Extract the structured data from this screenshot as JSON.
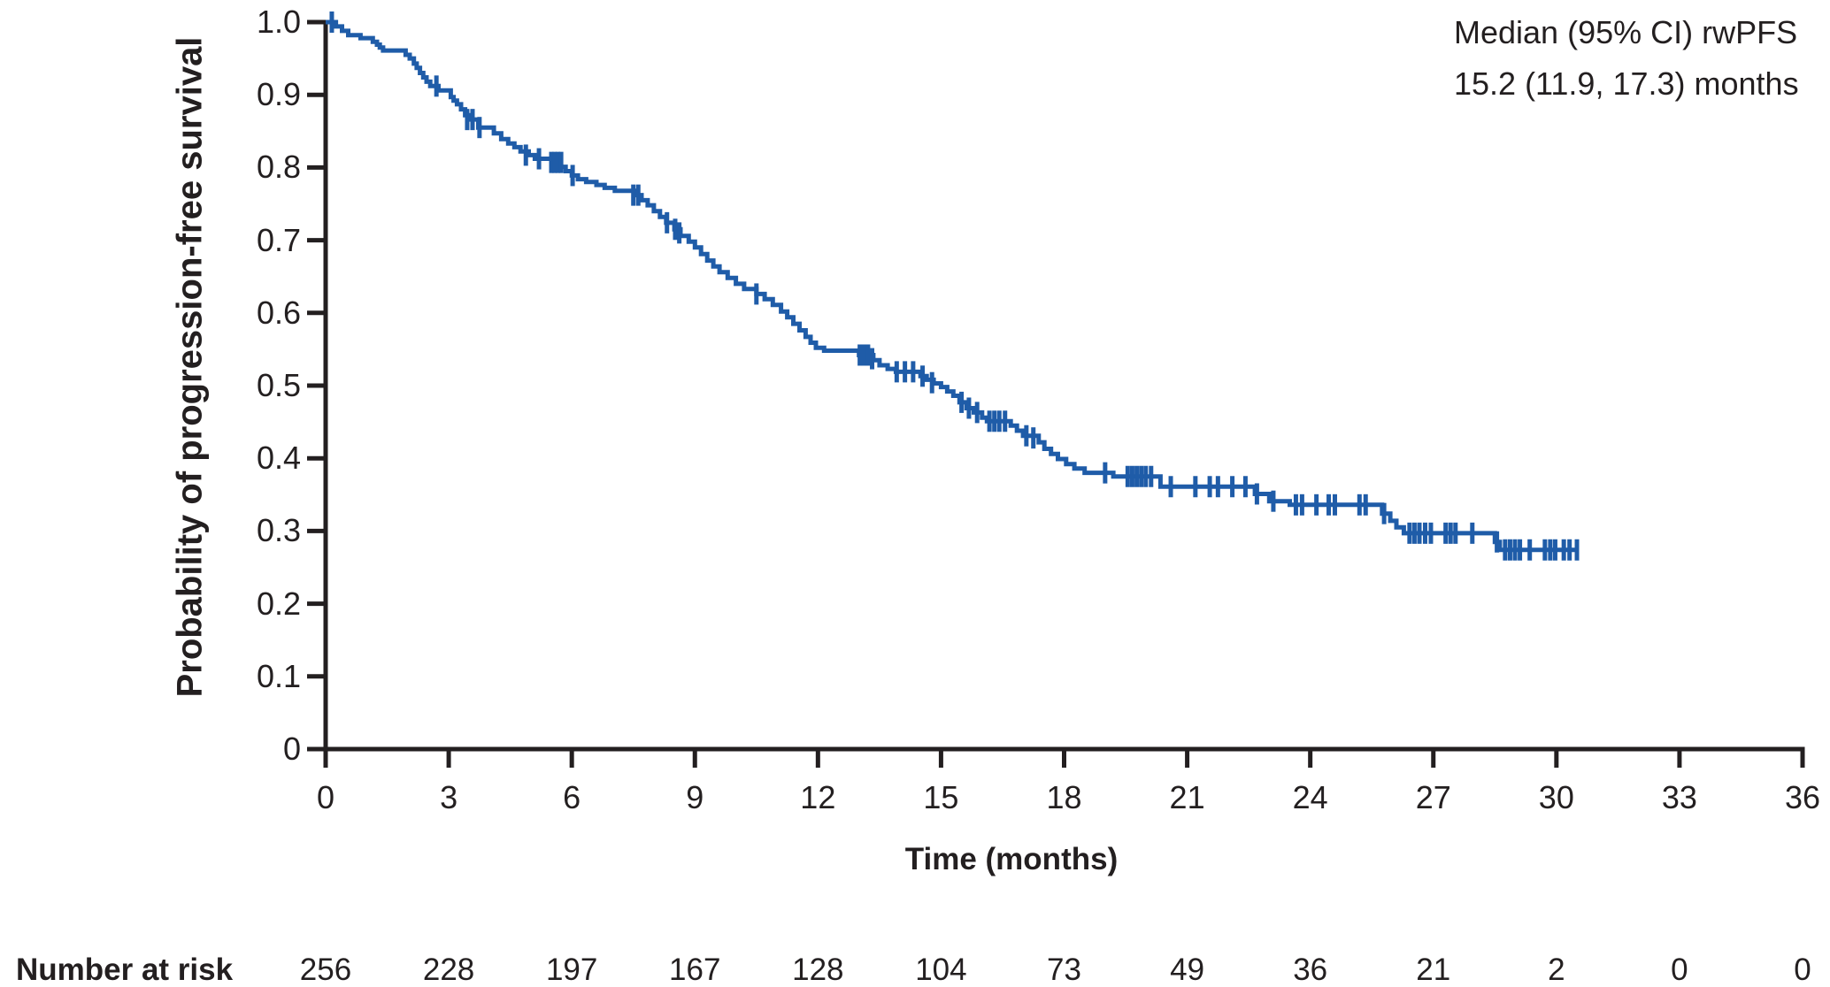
{
  "colors": {
    "curve": "#1f5ca8",
    "axis": "#231f20",
    "text": "#231f20",
    "background": "#ffffff"
  },
  "chart_data": {
    "type": "line",
    "variant": "kaplan-meier-step",
    "title": "",
    "xlabel": "Time (months)",
    "ylabel": "Probability of progression-free survival",
    "xlim": [
      0,
      36
    ],
    "ylim": [
      0,
      1
    ],
    "grid": false,
    "legend": "none",
    "annotation": {
      "line1": "Median (95% CI) rwPFS",
      "line2": "15.2 (11.9, 17.3) months"
    },
    "xticks": {
      "values": [
        0,
        3,
        6,
        9,
        12,
        15,
        18,
        21,
        24,
        27,
        30,
        33,
        36
      ],
      "labels": [
        "0",
        "3",
        "6",
        "9",
        "12",
        "15",
        "18",
        "21",
        "24",
        "27",
        "30",
        "33",
        "36"
      ]
    },
    "yticks": {
      "values": [
        0,
        0.1,
        0.2,
        0.3,
        0.4,
        0.5,
        0.6,
        0.7,
        0.8,
        0.9,
        1.0
      ],
      "labels": [
        "0",
        "0.1",
        "0.2",
        "0.3",
        "0.4",
        "0.5",
        "0.6",
        "0.7",
        "0.8",
        "0.9",
        "1.0"
      ]
    },
    "series": [
      {
        "name": "rwPFS",
        "color": "#1f5ca8",
        "end_time": 30.55,
        "steps": [
          [
            0,
            1.0
          ],
          [
            0.25,
            0.994
          ],
          [
            0.4,
            0.988
          ],
          [
            0.55,
            0.982
          ],
          [
            0.85,
            0.978
          ],
          [
            1.15,
            0.973
          ],
          [
            1.25,
            0.969
          ],
          [
            1.32,
            0.965
          ],
          [
            1.4,
            0.961
          ],
          [
            1.95,
            0.955
          ],
          [
            2.05,
            0.95
          ],
          [
            2.15,
            0.943
          ],
          [
            2.22,
            0.937
          ],
          [
            2.3,
            0.93
          ],
          [
            2.38,
            0.924
          ],
          [
            2.46,
            0.918
          ],
          [
            2.55,
            0.912
          ],
          [
            2.75,
            0.906
          ],
          [
            3.05,
            0.897
          ],
          [
            3.12,
            0.892
          ],
          [
            3.2,
            0.887
          ],
          [
            3.3,
            0.88
          ],
          [
            3.4,
            0.872
          ],
          [
            3.5,
            0.866
          ],
          [
            3.72,
            0.855
          ],
          [
            4.1,
            0.847
          ],
          [
            4.28,
            0.839
          ],
          [
            4.45,
            0.833
          ],
          [
            4.6,
            0.828
          ],
          [
            4.75,
            0.822
          ],
          [
            4.95,
            0.817
          ],
          [
            5.1,
            0.812
          ],
          [
            5.5,
            0.807
          ],
          [
            5.7,
            0.801
          ],
          [
            5.85,
            0.795
          ],
          [
            6.0,
            0.789
          ],
          [
            6.15,
            0.784
          ],
          [
            6.35,
            0.78
          ],
          [
            6.6,
            0.776
          ],
          [
            6.8,
            0.772
          ],
          [
            7.05,
            0.768
          ],
          [
            7.55,
            0.762
          ],
          [
            7.7,
            0.755
          ],
          [
            7.85,
            0.748
          ],
          [
            8.0,
            0.74
          ],
          [
            8.15,
            0.732
          ],
          [
            8.3,
            0.724
          ],
          [
            8.5,
            0.715
          ],
          [
            8.65,
            0.706
          ],
          [
            8.85,
            0.698
          ],
          [
            9.0,
            0.69
          ],
          [
            9.15,
            0.681
          ],
          [
            9.3,
            0.672
          ],
          [
            9.45,
            0.664
          ],
          [
            9.6,
            0.656
          ],
          [
            9.8,
            0.648
          ],
          [
            10.0,
            0.64
          ],
          [
            10.2,
            0.633
          ],
          [
            10.5,
            0.626
          ],
          [
            10.7,
            0.619
          ],
          [
            10.9,
            0.611
          ],
          [
            11.1,
            0.602
          ],
          [
            11.25,
            0.594
          ],
          [
            11.4,
            0.585
          ],
          [
            11.55,
            0.576
          ],
          [
            11.7,
            0.567
          ],
          [
            11.82,
            0.559
          ],
          [
            11.95,
            0.552
          ],
          [
            12.15,
            0.548
          ],
          [
            13.0,
            0.542
          ],
          [
            13.35,
            0.535
          ],
          [
            13.5,
            0.528
          ],
          [
            13.7,
            0.523
          ],
          [
            13.9,
            0.519
          ],
          [
            14.5,
            0.513
          ],
          [
            14.65,
            0.508
          ],
          [
            14.82,
            0.503
          ],
          [
            15.0,
            0.498
          ],
          [
            15.15,
            0.492
          ],
          [
            15.3,
            0.486
          ],
          [
            15.45,
            0.477
          ],
          [
            15.62,
            0.469
          ],
          [
            15.8,
            0.463
          ],
          [
            16.0,
            0.456
          ],
          [
            16.12,
            0.451
          ],
          [
            16.7,
            0.445
          ],
          [
            16.85,
            0.438
          ],
          [
            17.0,
            0.431
          ],
          [
            17.38,
            0.422
          ],
          [
            17.52,
            0.413
          ],
          [
            17.68,
            0.406
          ],
          [
            17.85,
            0.399
          ],
          [
            18.05,
            0.392
          ],
          [
            18.25,
            0.386
          ],
          [
            18.5,
            0.38
          ],
          [
            19.2,
            0.375
          ],
          [
            20.35,
            0.361
          ],
          [
            22.65,
            0.351
          ],
          [
            23.0,
            0.341
          ],
          [
            23.5,
            0.336
          ],
          [
            25.75,
            0.324
          ],
          [
            25.95,
            0.314
          ],
          [
            26.1,
            0.305
          ],
          [
            26.28,
            0.297
          ],
          [
            28.5,
            0.285
          ],
          [
            28.62,
            0.274
          ]
        ],
        "censors": [
          [
            0.15,
            1.0
          ],
          [
            2.7,
            0.912
          ],
          [
            3.45,
            0.866
          ],
          [
            3.58,
            0.866
          ],
          [
            3.75,
            0.855
          ],
          [
            4.88,
            0.817
          ],
          [
            5.2,
            0.812
          ],
          [
            5.5,
            0.807
          ],
          [
            5.58,
            0.807
          ],
          [
            5.66,
            0.807
          ],
          [
            5.74,
            0.807
          ],
          [
            6.02,
            0.789
          ],
          [
            7.5,
            0.762
          ],
          [
            7.62,
            0.762
          ],
          [
            8.32,
            0.724
          ],
          [
            8.52,
            0.715
          ],
          [
            8.62,
            0.71
          ],
          [
            10.5,
            0.626
          ],
          [
            13.02,
            0.542
          ],
          [
            13.12,
            0.542
          ],
          [
            13.22,
            0.542
          ],
          [
            13.32,
            0.537
          ],
          [
            13.92,
            0.519
          ],
          [
            14.12,
            0.519
          ],
          [
            14.32,
            0.519
          ],
          [
            14.55,
            0.513
          ],
          [
            14.78,
            0.504
          ],
          [
            15.5,
            0.477
          ],
          [
            15.68,
            0.469
          ],
          [
            15.88,
            0.463
          ],
          [
            16.18,
            0.451
          ],
          [
            16.3,
            0.451
          ],
          [
            16.42,
            0.451
          ],
          [
            16.56,
            0.451
          ],
          [
            17.08,
            0.431
          ],
          [
            17.25,
            0.428
          ],
          [
            19.0,
            0.38
          ],
          [
            19.55,
            0.375
          ],
          [
            19.66,
            0.375
          ],
          [
            19.77,
            0.375
          ],
          [
            19.88,
            0.375
          ],
          [
            19.99,
            0.375
          ],
          [
            20.12,
            0.375
          ],
          [
            20.6,
            0.361
          ],
          [
            21.2,
            0.361
          ],
          [
            21.55,
            0.361
          ],
          [
            21.75,
            0.361
          ],
          [
            22.1,
            0.361
          ],
          [
            22.42,
            0.361
          ],
          [
            22.7,
            0.351
          ],
          [
            23.1,
            0.341
          ],
          [
            23.65,
            0.336
          ],
          [
            23.8,
            0.336
          ],
          [
            24.15,
            0.336
          ],
          [
            24.45,
            0.336
          ],
          [
            24.6,
            0.336
          ],
          [
            25.2,
            0.336
          ],
          [
            25.35,
            0.336
          ],
          [
            25.8,
            0.324
          ],
          [
            26.42,
            0.297
          ],
          [
            26.54,
            0.297
          ],
          [
            26.66,
            0.297
          ],
          [
            26.8,
            0.297
          ],
          [
            26.94,
            0.297
          ],
          [
            27.3,
            0.297
          ],
          [
            27.42,
            0.297
          ],
          [
            27.54,
            0.297
          ],
          [
            27.95,
            0.297
          ],
          [
            28.55,
            0.285
          ],
          [
            28.75,
            0.274
          ],
          [
            28.87,
            0.274
          ],
          [
            28.99,
            0.274
          ],
          [
            29.11,
            0.274
          ],
          [
            29.35,
            0.274
          ],
          [
            29.72,
            0.274
          ],
          [
            29.85,
            0.274
          ],
          [
            29.97,
            0.274
          ],
          [
            30.18,
            0.274
          ],
          [
            30.32,
            0.274
          ],
          [
            30.5,
            0.274
          ]
        ]
      }
    ],
    "risk_table": {
      "label": "Number at risk",
      "times": [
        0,
        3,
        6,
        9,
        12,
        15,
        18,
        21,
        24,
        27,
        30,
        33,
        36
      ],
      "counts": [
        256,
        228,
        197,
        167,
        128,
        104,
        73,
        49,
        36,
        21,
        2,
        0,
        0
      ]
    }
  }
}
